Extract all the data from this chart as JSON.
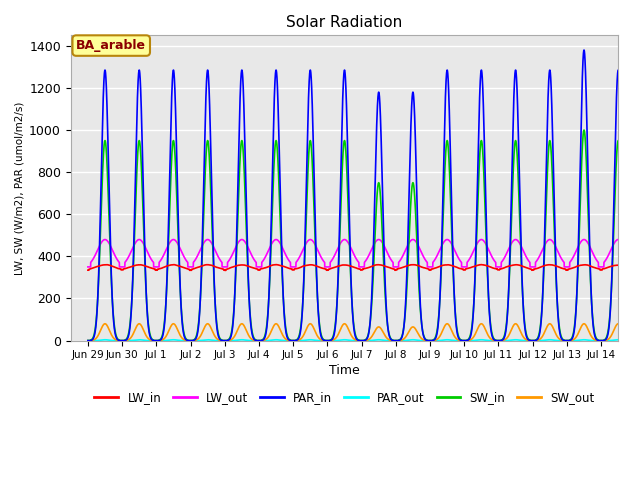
{
  "title": "Solar Radiation",
  "ylabel": "LW, SW (W/m2), PAR (umol/m2/s)",
  "xlabel": "Time",
  "ylim": [
    0,
    1450
  ],
  "yticks": [
    0,
    200,
    400,
    600,
    800,
    1000,
    1200,
    1400
  ],
  "annotation_text": "BA_arable",
  "annotation_facecolor": "#ffff99",
  "annotation_edgecolor": "#b8860b",
  "annotation_textcolor": "#8b0000",
  "plot_bg_color": "#e8e8e8",
  "lines": {
    "LW_in": {
      "color": "#ff0000",
      "lw": 1.2
    },
    "LW_out": {
      "color": "#ff00ff",
      "lw": 1.2
    },
    "PAR_in": {
      "color": "#0000ff",
      "lw": 1.2
    },
    "PAR_out": {
      "color": "#00ffff",
      "lw": 1.2
    },
    "SW_in": {
      "color": "#00cc00",
      "lw": 1.2
    },
    "SW_out": {
      "color": "#ff9900",
      "lw": 1.2
    }
  }
}
